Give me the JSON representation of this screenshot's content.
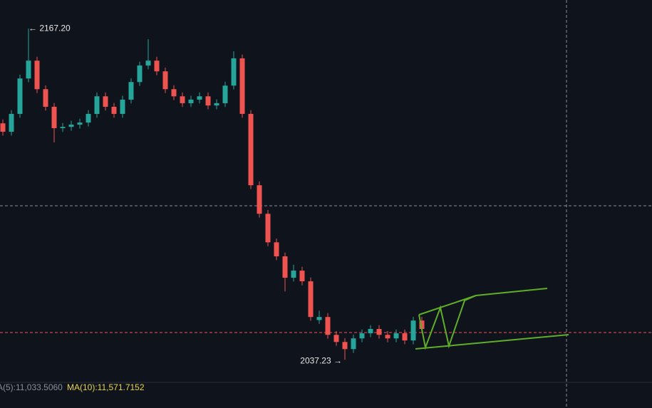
{
  "chart_data": {
    "type": "candlestick",
    "colors": {
      "up": "#26a69a",
      "down": "#ef5350"
    },
    "ylim": [
      2028.9,
      2178.4
    ],
    "open": [
      2130.0,
      2126.7,
      2133.7,
      2147.6,
      2154.6,
      2143.4,
      2136.5,
      2128.1,
      2128.6,
      2129.5,
      2130.3,
      2133.7,
      2140.6,
      2136.5,
      2133.7,
      2139.3,
      2146.2,
      2152.7,
      2154.6,
      2150.4,
      2143.4,
      2140.6,
      2137.9,
      2139.3,
      2140.6,
      2137.0,
      2137.9,
      2144.8,
      2155.5,
      2133.7,
      2105.7,
      2094.5,
      2083.3,
      2077.8,
      2069.4,
      2072.2,
      2068.0,
      2052.8,
      2054.0,
      2047.0,
      2044.2,
      2041.4,
      2045.6,
      2047.6,
      2049.3,
      2047.0,
      2045.6,
      2047.6,
      2044.8,
      2052.6
    ],
    "high": [
      2131.5,
      2135.2,
      2149.1,
      2167.2,
      2156.1,
      2144.9,
      2138.0,
      2130.1,
      2131.0,
      2131.8,
      2135.2,
      2142.1,
      2142.1,
      2138.0,
      2140.8,
      2147.7,
      2154.2,
      2163.0,
      2156.1,
      2151.9,
      2144.9,
      2142.1,
      2140.8,
      2142.1,
      2142.1,
      2139.4,
      2146.3,
      2158.3,
      2157.0,
      2135.2,
      2107.2,
      2096.0,
      2084.8,
      2079.3,
      2074.5,
      2073.7,
      2069.5,
      2056.5,
      2055.5,
      2048.5,
      2045.7,
      2047.1,
      2049.1,
      2050.8,
      2050.8,
      2048.5,
      2049.1,
      2049.1,
      2054.1,
      2054.1
    ],
    "low": [
      2125.2,
      2125.2,
      2132.2,
      2146.1,
      2141.9,
      2135.0,
      2122.5,
      2126.6,
      2127.1,
      2128.0,
      2128.8,
      2132.2,
      2135.0,
      2132.2,
      2132.2,
      2137.8,
      2144.7,
      2151.2,
      2148.9,
      2141.9,
      2139.1,
      2136.4,
      2136.4,
      2137.8,
      2135.5,
      2135.5,
      2136.4,
      2143.3,
      2132.2,
      2104.2,
      2093.0,
      2081.8,
      2076.3,
      2064.0,
      2067.9,
      2066.5,
      2052.5,
      2051.3,
      2045.5,
      2042.7,
      2037.23,
      2039.9,
      2044.1,
      2046.1,
      2045.5,
      2044.1,
      2044.1,
      2043.3,
      2043.3,
      2047.8
    ],
    "close": [
      2126.7,
      2133.7,
      2147.6,
      2154.6,
      2143.4,
      2136.5,
      2128.1,
      2128.6,
      2129.5,
      2130.3,
      2133.7,
      2140.6,
      2136.5,
      2133.7,
      2139.3,
      2146.2,
      2152.7,
      2154.6,
      2150.4,
      2143.4,
      2140.6,
      2137.9,
      2139.3,
      2140.6,
      2137.0,
      2137.9,
      2144.8,
      2155.5,
      2133.7,
      2105.7,
      2094.5,
      2083.3,
      2077.8,
      2069.4,
      2072.2,
      2068.0,
      2054.0,
      2054.0,
      2047.0,
      2044.2,
      2041.4,
      2045.6,
      2047.6,
      2049.3,
      2047.0,
      2045.6,
      2047.6,
      2044.8,
      2052.6,
      2049.3
    ],
    "annotations": {
      "high": "← 2167.20",
      "low": "2037.23 →"
    },
    "indicators": {
      "ma5": "A(5):11,033.5060",
      "ma10": "MA(10):11,571.7152"
    }
  }
}
